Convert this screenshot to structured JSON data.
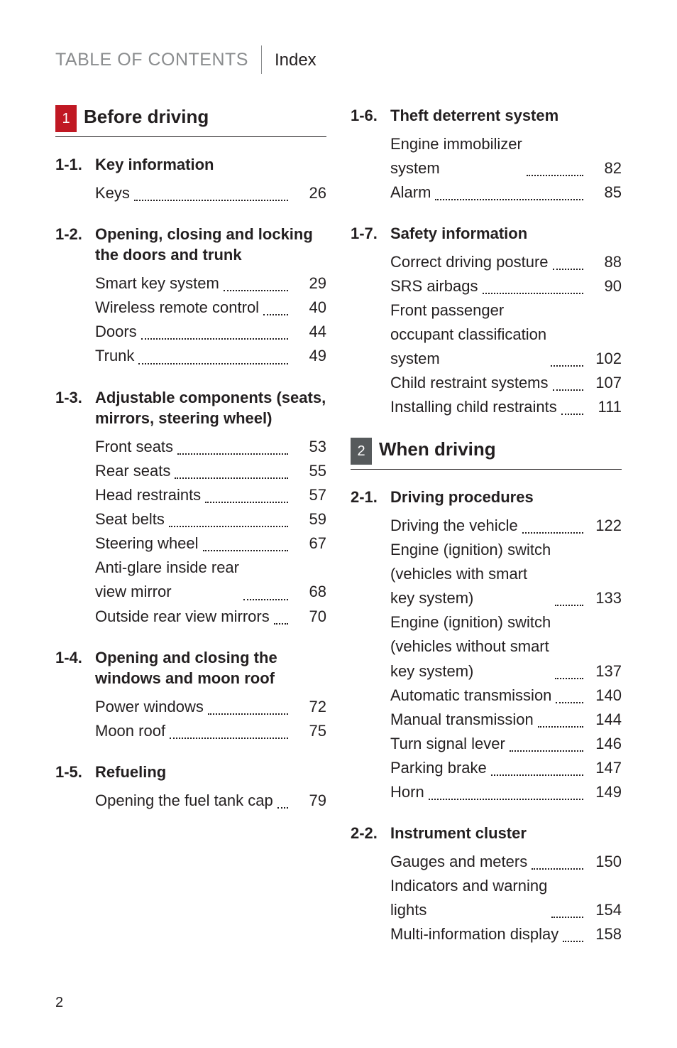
{
  "header": {
    "title": "TABLE OF CONTENTS",
    "subtitle": "Index"
  },
  "page_number": "2",
  "colors": {
    "chip1": "#c01823",
    "chip2": "#565a5c",
    "header_grey": "#8a8c8e",
    "text": "#231f20",
    "background": "#ffffff"
  },
  "left": {
    "chapter": {
      "num": "1",
      "title": "Before driving",
      "chipColor": "#c01823"
    },
    "sections": [
      {
        "num": "1-1.",
        "title": "Key information",
        "entries": [
          {
            "label": "Keys",
            "page": "26"
          }
        ]
      },
      {
        "num": "1-2.",
        "title": "Opening, closing and locking the doors and trunk",
        "entries": [
          {
            "label": "Smart key system",
            "page": "29"
          },
          {
            "label": "Wireless remote control",
            "page": "40"
          },
          {
            "label": "Doors",
            "page": "44"
          },
          {
            "label": "Trunk",
            "page": "49"
          }
        ]
      },
      {
        "num": "1-3.",
        "title": "Adjustable components (seats, mirrors, steering wheel)",
        "entries": [
          {
            "label": "Front seats",
            "page": "53"
          },
          {
            "label": "Rear seats",
            "page": "55"
          },
          {
            "label": "Head restraints",
            "page": "57"
          },
          {
            "label": "Seat belts",
            "page": "59"
          },
          {
            "label": "Steering wheel",
            "page": "67"
          },
          {
            "label": "Anti-glare inside rear\nview mirror",
            "page": "68"
          },
          {
            "label": "Outside rear view mirrors",
            "page": "70"
          }
        ]
      },
      {
        "num": "1-4.",
        "title": "Opening and closing the windows and moon roof",
        "entries": [
          {
            "label": "Power windows",
            "page": "72"
          },
          {
            "label": "Moon roof",
            "page": "75"
          }
        ]
      },
      {
        "num": "1-5.",
        "title": "Refueling",
        "entries": [
          {
            "label": "Opening the fuel tank cap",
            "page": "79"
          }
        ]
      }
    ]
  },
  "right": {
    "pre_sections": [
      {
        "num": "1-6.",
        "title": "Theft deterrent system",
        "entries": [
          {
            "label": "Engine immobilizer\nsystem",
            "page": "82"
          },
          {
            "label": "Alarm",
            "page": "85"
          }
        ]
      },
      {
        "num": "1-7.",
        "title": "Safety information",
        "entries": [
          {
            "label": "Correct driving posture",
            "page": "88"
          },
          {
            "label": "SRS airbags",
            "page": "90"
          },
          {
            "label": "Front passenger\noccupant classification\nsystem",
            "page": "102"
          },
          {
            "label": "Child restraint systems",
            "page": "107"
          },
          {
            "label": "Installing child restraints",
            "page": "111"
          }
        ]
      }
    ],
    "chapter": {
      "num": "2",
      "title": "When driving",
      "chipColor": "#565a5c"
    },
    "sections": [
      {
        "num": "2-1.",
        "title": "Driving procedures",
        "entries": [
          {
            "label": "Driving the vehicle",
            "page": "122"
          },
          {
            "label": "Engine (ignition) switch\n(vehicles with smart\nkey system)",
            "page": "133"
          },
          {
            "label": "Engine (ignition) switch\n(vehicles without smart\nkey system)",
            "page": "137"
          },
          {
            "label": "Automatic transmission",
            "page": "140"
          },
          {
            "label": "Manual transmission",
            "page": "144"
          },
          {
            "label": "Turn signal lever",
            "page": "146"
          },
          {
            "label": "Parking brake",
            "page": "147"
          },
          {
            "label": "Horn",
            "page": "149"
          }
        ]
      },
      {
        "num": "2-2.",
        "title": "Instrument cluster",
        "entries": [
          {
            "label": "Gauges and meters",
            "page": "150"
          },
          {
            "label": "Indicators and warning\nlights",
            "page": "154"
          },
          {
            "label": "Multi-information display",
            "page": "158"
          }
        ]
      }
    ]
  }
}
